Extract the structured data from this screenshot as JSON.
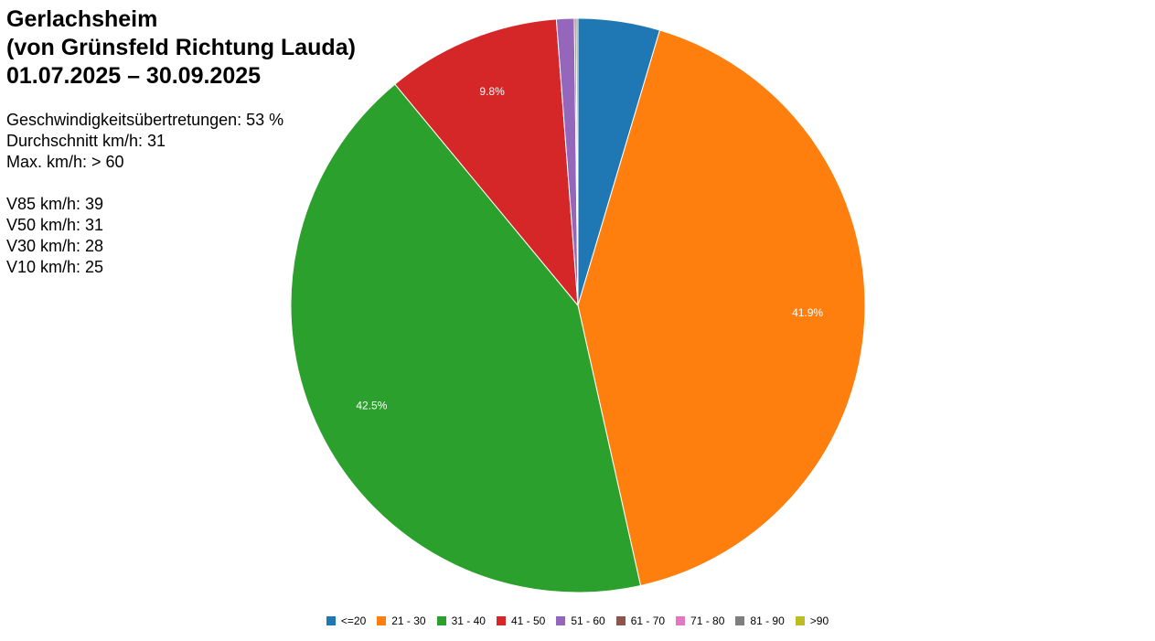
{
  "title": {
    "line1": "Gerlachsheim",
    "line2": "(von Grünsfeld Richtung Lauda)",
    "line3": "01.07.2025 – 30.09.2025"
  },
  "stats": {
    "speeding": "Geschwindigkeitsübertretungen: 53 %",
    "average": "Durchschnitt km/h: 31",
    "max": "Max. km/h: > 60",
    "v85": "V85 km/h: 39",
    "v50": "V50 km/h: 31",
    "v30": "V30 km/h: 28",
    "v10": "V10 km/h: 25"
  },
  "chart_data": {
    "type": "pie",
    "categories": [
      "<=20",
      "21 - 30",
      "31 - 40",
      "41 - 50",
      "51 - 60",
      "61 - 70",
      "71 - 80",
      "81 - 90",
      ">90"
    ],
    "values": [
      4.6,
      41.9,
      42.5,
      9.8,
      1.0,
      0.1,
      0.0,
      0.1,
      0.0
    ],
    "data_labels": [
      "",
      "41.9%",
      "42.5%",
      "9.8%",
      "",
      "",
      "",
      "",
      ""
    ],
    "colors": [
      "#1f77b4",
      "#ff7f0e",
      "#2ca02c",
      "#d62728",
      "#9467bd",
      "#8c564b",
      "#e377c2",
      "#7f7f7f",
      "#bcbd22"
    ],
    "start": "top",
    "direction": "clockwise",
    "legend": "bottom"
  }
}
